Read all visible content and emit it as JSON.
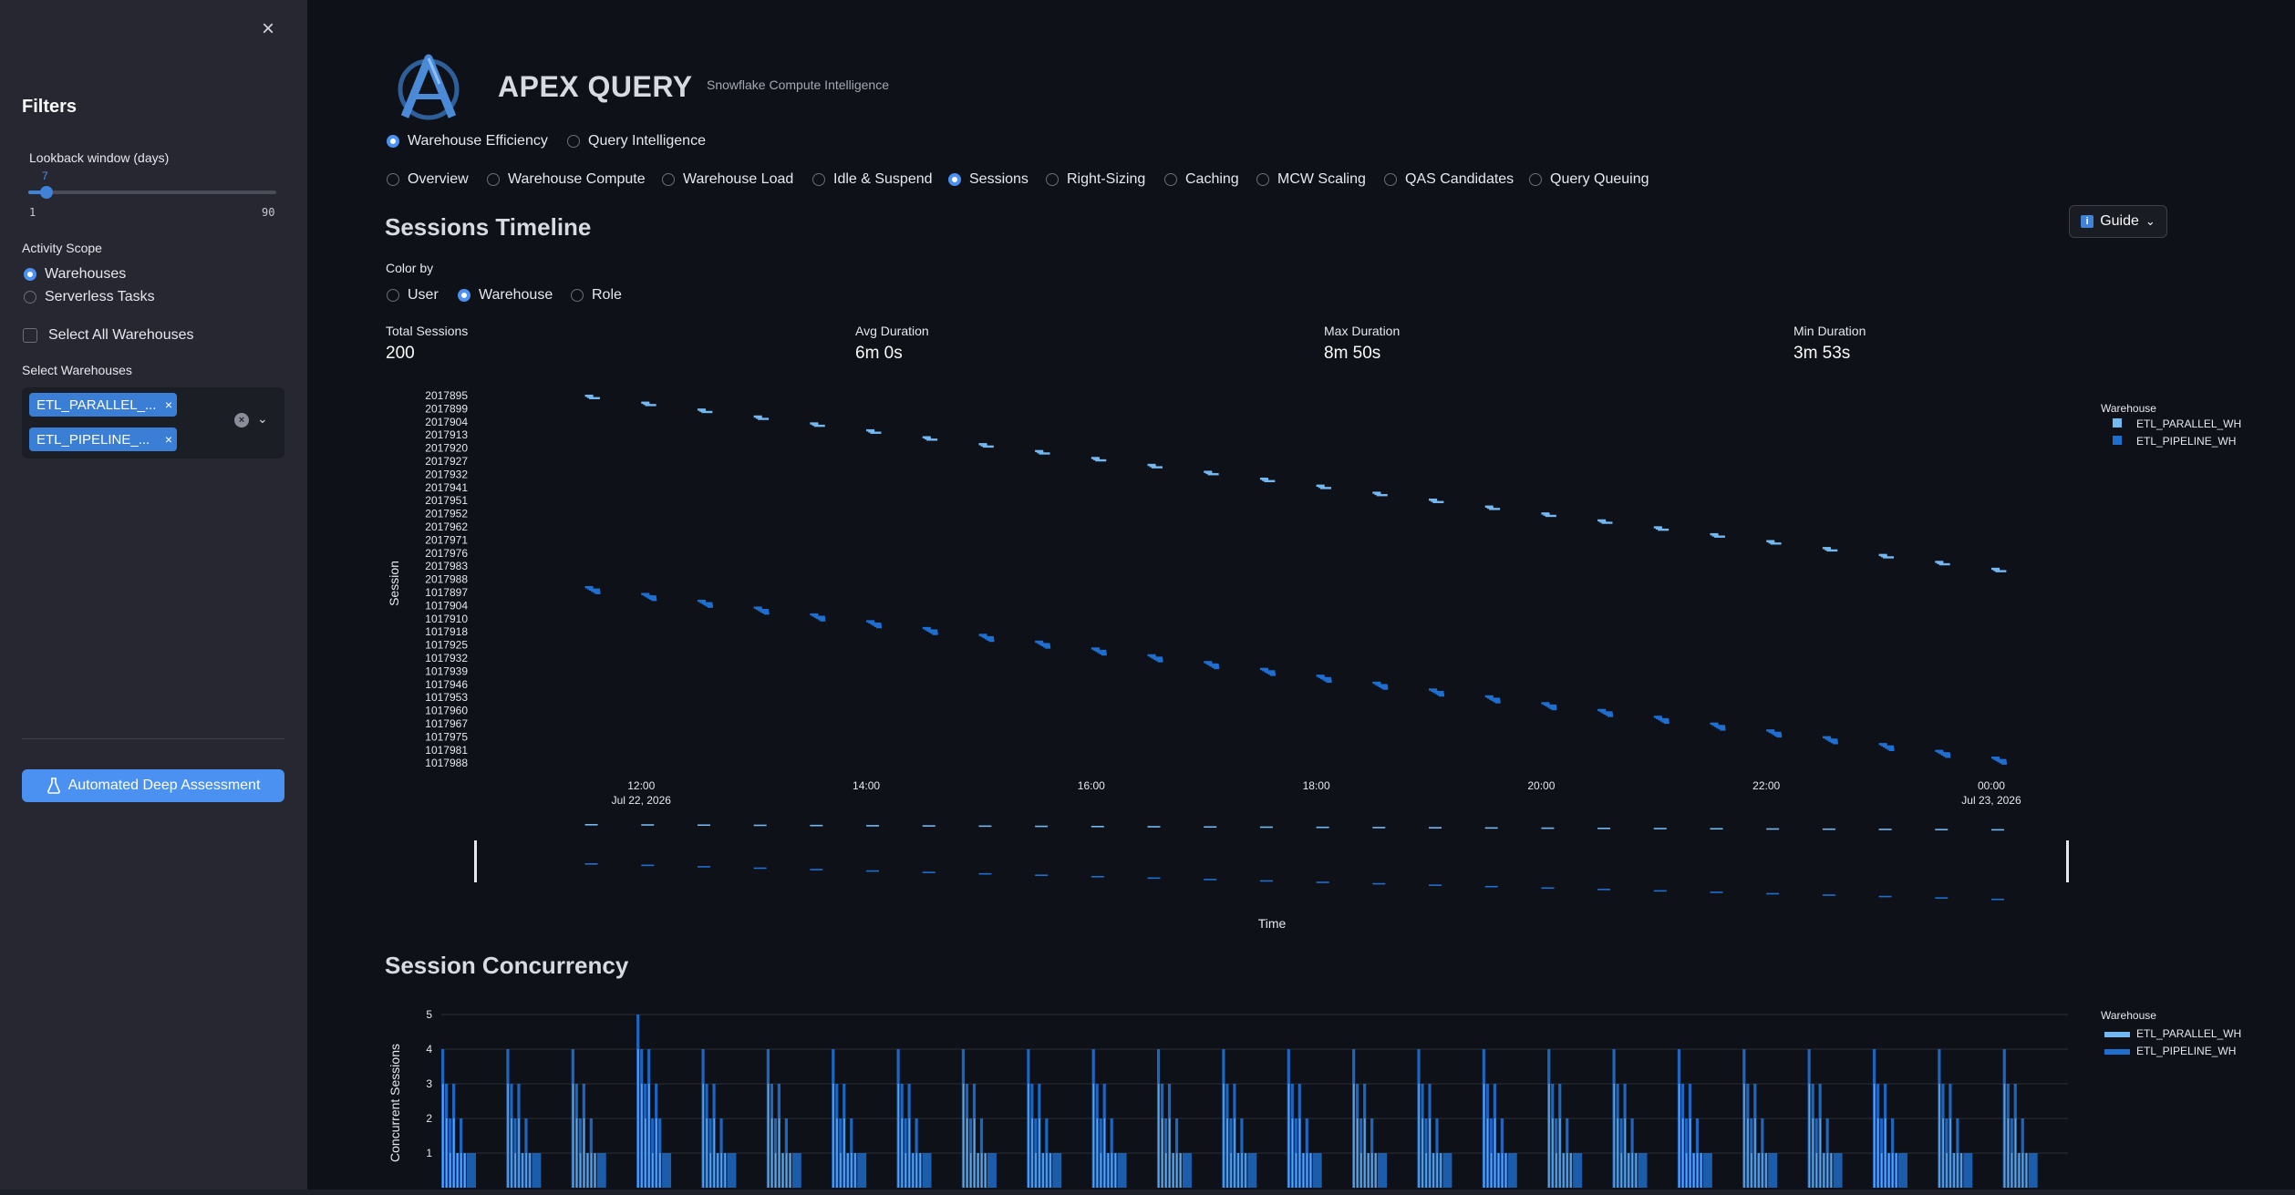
{
  "sidebar": {
    "close_icon": "×",
    "title": "Filters",
    "lookback": {
      "label": "Lookback window (days)",
      "value": "7",
      "min": "1",
      "max": "90",
      "fraction": 0.067
    },
    "activity_scope": {
      "label": "Activity Scope",
      "options": [
        {
          "label": "Warehouses",
          "selected": true
        },
        {
          "label": "Serverless Tasks",
          "selected": false
        }
      ]
    },
    "select_all_label": "Select All Warehouses",
    "select_warehouses": {
      "label": "Select Warehouses",
      "tags": [
        "ETL_PARALLEL_...",
        "ETL_PIPELINE_..."
      ],
      "tag_remove": "×",
      "clear_icon": "×",
      "chevron_icon": "⌄"
    },
    "deep_assessment_button": "Automated Deep Assessment"
  },
  "header": {
    "title": "APEX QUERY",
    "subtitle": "Snowflake Compute Intelligence"
  },
  "mode_tabs": [
    {
      "label": "Warehouse Efficiency",
      "selected": true
    },
    {
      "label": "Query Intelligence",
      "selected": false
    }
  ],
  "sub_tabs": [
    {
      "label": "Overview",
      "selected": false
    },
    {
      "label": "Warehouse Compute",
      "selected": false
    },
    {
      "label": "Warehouse Load",
      "selected": false
    },
    {
      "label": "Idle & Suspend",
      "selected": false
    },
    {
      "label": "Sessions",
      "selected": true
    },
    {
      "label": "Right-Sizing",
      "selected": false
    },
    {
      "label": "Caching",
      "selected": false
    },
    {
      "label": "MCW Scaling",
      "selected": false
    },
    {
      "label": "QAS Candidates",
      "selected": false
    },
    {
      "label": "Query Queuing",
      "selected": false
    }
  ],
  "sessions": {
    "title": "Sessions Timeline",
    "guide_button": "Guide",
    "guide_icon": "i",
    "guide_chevron": "⌄",
    "color_by": {
      "label": "Color by",
      "options": [
        {
          "label": "User",
          "selected": false
        },
        {
          "label": "Warehouse",
          "selected": true
        },
        {
          "label": "Role",
          "selected": false
        }
      ]
    },
    "metrics": [
      {
        "label": "Total Sessions",
        "value": "200"
      },
      {
        "label": "Avg Duration",
        "value": "6m 0s"
      },
      {
        "label": "Max Duration",
        "value": "8m 50s"
      },
      {
        "label": "Min Duration",
        "value": "3m 53s"
      }
    ]
  },
  "concurrency": {
    "title": "Session Concurrency"
  },
  "colors": {
    "parallel": "#74b8f2",
    "pipeline": "#1f6fd1",
    "accent": "#4b91f1"
  },
  "chart_data": [
    {
      "type": "gantt",
      "ylabel": "Session",
      "xlabel": "Time",
      "legend_title": "Warehouse",
      "legend_position": "top-right",
      "y_tick_labels": [
        "2017895",
        "2017899",
        "2017904",
        "2017913",
        "2017920",
        "2017927",
        "2017932",
        "2017941",
        "2017951",
        "2017952",
        "2017962",
        "2017971",
        "2017976",
        "2017983",
        "2017988",
        "1017897",
        "1017904",
        "1017910",
        "1017918",
        "1017925",
        "1017932",
        "1017939",
        "1017946",
        "1017953",
        "1017960",
        "1017967",
        "1017975",
        "1017981",
        "1017988"
      ],
      "x_ticks": [
        {
          "label": "12:00",
          "sub": "Jul 22, 2026",
          "hour": 12
        },
        {
          "label": "14:00",
          "sub": "",
          "hour": 14
        },
        {
          "label": "16:00",
          "sub": "",
          "hour": 16
        },
        {
          "label": "18:00",
          "sub": "",
          "hour": 18
        },
        {
          "label": "20:00",
          "sub": "",
          "hour": 20
        },
        {
          "label": "22:00",
          "sub": "",
          "hour": 22
        },
        {
          "label": "00:00",
          "sub": "Jul 23, 2026",
          "hour": 24
        }
      ],
      "x_range_hours": [
        10.45,
        24.6
      ],
      "series": [
        {
          "name": "ETL_PARALLEL_WH",
          "clusters": [
            {
              "start": 11.5,
              "rank": 0.0
            },
            {
              "start": 12.0,
              "rank": 0.037
            },
            {
              "start": 12.5,
              "rank": 0.074
            },
            {
              "start": 13.0,
              "rank": 0.111
            },
            {
              "start": 13.5,
              "rank": 0.148
            },
            {
              "start": 14.0,
              "rank": 0.185
            },
            {
              "start": 14.5,
              "rank": 0.222
            },
            {
              "start": 15.0,
              "rank": 0.259
            },
            {
              "start": 15.5,
              "rank": 0.296
            },
            {
              "start": 16.0,
              "rank": 0.333
            },
            {
              "start": 16.5,
              "rank": 0.37
            },
            {
              "start": 17.0,
              "rank": 0.407
            },
            {
              "start": 17.5,
              "rank": 0.444
            },
            {
              "start": 18.0,
              "rank": 0.481
            },
            {
              "start": 18.5,
              "rank": 0.519
            },
            {
              "start": 19.0,
              "rank": 0.556
            },
            {
              "start": 19.5,
              "rank": 0.593
            },
            {
              "start": 20.0,
              "rank": 0.63
            },
            {
              "start": 20.5,
              "rank": 0.667
            },
            {
              "start": 21.0,
              "rank": 0.704
            },
            {
              "start": 21.5,
              "rank": 0.741
            },
            {
              "start": 22.0,
              "rank": 0.778
            },
            {
              "start": 22.5,
              "rank": 0.815
            },
            {
              "start": 23.0,
              "rank": 0.852
            },
            {
              "start": 23.5,
              "rank": 0.889
            },
            {
              "start": 24.0,
              "rank": 0.926
            }
          ]
        },
        {
          "name": "ETL_PIPELINE_WH",
          "clusters": [
            {
              "start": 11.5,
              "rank": 0.0
            },
            {
              "start": 12.0,
              "rank": 0.037
            },
            {
              "start": 12.5,
              "rank": 0.074
            },
            {
              "start": 13.0,
              "rank": 0.111
            },
            {
              "start": 13.5,
              "rank": 0.148
            },
            {
              "start": 14.0,
              "rank": 0.185
            },
            {
              "start": 14.5,
              "rank": 0.222
            },
            {
              "start": 15.0,
              "rank": 0.259
            },
            {
              "start": 15.5,
              "rank": 0.296
            },
            {
              "start": 16.0,
              "rank": 0.333
            },
            {
              "start": 16.5,
              "rank": 0.37
            },
            {
              "start": 17.0,
              "rank": 0.407
            },
            {
              "start": 17.5,
              "rank": 0.444
            },
            {
              "start": 18.0,
              "rank": 0.481
            },
            {
              "start": 18.5,
              "rank": 0.519
            },
            {
              "start": 19.0,
              "rank": 0.556
            },
            {
              "start": 19.5,
              "rank": 0.593
            },
            {
              "start": 20.0,
              "rank": 0.63
            },
            {
              "start": 20.5,
              "rank": 0.667
            },
            {
              "start": 21.0,
              "rank": 0.704
            },
            {
              "start": 21.5,
              "rank": 0.741
            },
            {
              "start": 22.0,
              "rank": 0.778
            },
            {
              "start": 22.5,
              "rank": 0.815
            },
            {
              "start": 23.0,
              "rank": 0.852
            },
            {
              "start": 23.5,
              "rank": 0.889
            },
            {
              "start": 24.0,
              "rank": 0.926
            }
          ]
        }
      ]
    },
    {
      "type": "area",
      "ylabel": "Concurrent Sessions",
      "legend_title": "Warehouse",
      "legend_position": "top-right",
      "y_ticks": [
        1,
        2,
        3,
        4,
        5
      ],
      "ylim": [
        0,
        5
      ],
      "cluster_count": 25,
      "cluster_peak": 4,
      "max_concurrency": 5,
      "series": [
        {
          "name": "ETL_PARALLEL_WH"
        },
        {
          "name": "ETL_PIPELINE_WH"
        }
      ]
    }
  ]
}
